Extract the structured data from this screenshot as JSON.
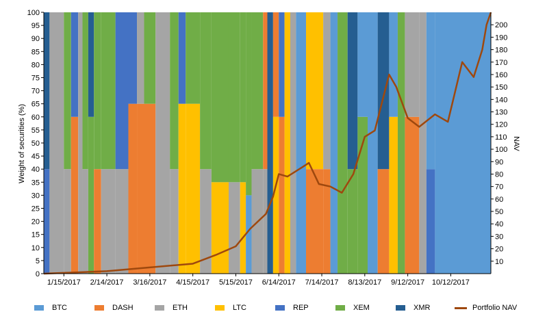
{
  "chart_data": {
    "type": "area",
    "title": "",
    "ylabel": "Weight of securities (%)",
    "y2label": "NAV",
    "ylim": [
      0,
      100
    ],
    "y2lim": [
      0,
      210
    ],
    "yticks": [
      0,
      5,
      10,
      15,
      20,
      25,
      30,
      35,
      40,
      45,
      50,
      55,
      60,
      65,
      70,
      75,
      80,
      85,
      90,
      95,
      100
    ],
    "y2ticks": [
      10,
      20,
      30,
      40,
      50,
      60,
      70,
      80,
      90,
      100,
      110,
      120,
      130,
      140,
      150,
      160,
      170,
      180,
      190,
      200
    ],
    "xlabels": [
      "1/15/2017",
      "2/14/2017",
      "3/16/2017",
      "4/15/2017",
      "5/15/2017",
      "6/14/2017",
      "7/14/2017",
      "8/13/2017",
      "9/12/2017",
      "10/12/2017"
    ],
    "x_date_range": [
      "2017-01-01",
      "2017-11-09"
    ],
    "series_colors": {
      "BTC": "#5b9bd5",
      "DASH": "#ed7d31",
      "ETH": "#a5a5a5",
      "LTC": "#ffc000",
      "REP": "#4472c4",
      "XEM": "#70ad47",
      "XMR": "#255e91",
      "Portfolio NAV": "#9e480e"
    },
    "legend": [
      "BTC",
      "DASH",
      "ETH",
      "LTC",
      "REP",
      "XEM",
      "XMR",
      "Portfolio NAV"
    ],
    "weights": [
      {
        "date": "2017-01-01",
        "holdings": [
          [
            "REP",
            40
          ],
          [
            "XMR",
            60
          ]
        ]
      },
      {
        "date": "2017-01-05",
        "holdings": [
          [
            "ETH",
            100
          ]
        ]
      },
      {
        "date": "2017-01-15",
        "holdings": [
          [
            "ETH",
            40
          ],
          [
            "XEM",
            60
          ]
        ]
      },
      {
        "date": "2017-01-20",
        "holdings": [
          [
            "DASH",
            60
          ],
          [
            "REP",
            40
          ]
        ]
      },
      {
        "date": "2017-01-25",
        "holdings": [
          [
            "ETH",
            100
          ]
        ]
      },
      {
        "date": "2017-01-28",
        "holdings": [
          [
            "ETH",
            40
          ],
          [
            "XEM",
            60
          ]
        ]
      },
      {
        "date": "2017-02-01",
        "holdings": [
          [
            "XEM",
            60
          ],
          [
            "XMR",
            40
          ]
        ]
      },
      {
        "date": "2017-02-05",
        "holdings": [
          [
            "DASH",
            40
          ],
          [
            "XEM",
            60
          ]
        ]
      },
      {
        "date": "2017-02-10",
        "holdings": [
          [
            "ETH",
            40
          ],
          [
            "XEM",
            60
          ]
        ]
      },
      {
        "date": "2017-02-20",
        "holdings": [
          [
            "ETH",
            40
          ],
          [
            "REP",
            60
          ]
        ]
      },
      {
        "date": "2017-03-01",
        "holdings": [
          [
            "DASH",
            65
          ],
          [
            "REP",
            35
          ]
        ]
      },
      {
        "date": "2017-03-07",
        "holdings": [
          [
            "DASH",
            65
          ],
          [
            "ETH",
            35
          ]
        ]
      },
      {
        "date": "2017-03-12",
        "holdings": [
          [
            "DASH",
            65
          ],
          [
            "XEM",
            35
          ]
        ]
      },
      {
        "date": "2017-03-20",
        "holdings": [
          [
            "ETH",
            100
          ]
        ]
      },
      {
        "date": "2017-03-30",
        "holdings": [
          [
            "ETH",
            40
          ],
          [
            "XEM",
            60
          ]
        ]
      },
      {
        "date": "2017-04-05",
        "holdings": [
          [
            "LTC",
            65
          ],
          [
            "REP",
            35
          ]
        ]
      },
      {
        "date": "2017-04-10",
        "holdings": [
          [
            "LTC",
            65
          ],
          [
            "XEM",
            35
          ]
        ]
      },
      {
        "date": "2017-04-20",
        "holdings": [
          [
            "ETH",
            40
          ],
          [
            "XEM",
            60
          ]
        ]
      },
      {
        "date": "2017-04-28",
        "holdings": [
          [
            "LTC",
            35
          ],
          [
            "XEM",
            65
          ]
        ]
      },
      {
        "date": "2017-05-10",
        "holdings": [
          [
            "ETH",
            35
          ],
          [
            "XEM",
            65
          ]
        ]
      },
      {
        "date": "2017-05-18",
        "holdings": [
          [
            "LTC",
            35
          ],
          [
            "XEM",
            65
          ]
        ]
      },
      {
        "date": "2017-05-22",
        "holdings": [
          [
            "BTC",
            30
          ],
          [
            "XEM",
            70
          ]
        ]
      },
      {
        "date": "2017-05-26",
        "holdings": [
          [
            "ETH",
            40
          ],
          [
            "XEM",
            60
          ]
        ]
      },
      {
        "date": "2017-06-03",
        "holdings": [
          [
            "ETH",
            40
          ],
          [
            "DASH",
            60
          ]
        ]
      },
      {
        "date": "2017-06-06",
        "holdings": [
          [
            "XMR",
            100
          ]
        ]
      },
      {
        "date": "2017-06-10",
        "holdings": [
          [
            "LTC",
            60
          ],
          [
            "DASH",
            40
          ]
        ]
      },
      {
        "date": "2017-06-14",
        "holdings": [
          [
            "DASH",
            60
          ],
          [
            "REP",
            40
          ]
        ]
      },
      {
        "date": "2017-06-18",
        "holdings": [
          [
            "LTC",
            100
          ]
        ]
      },
      {
        "date": "2017-06-22",
        "holdings": [
          [
            "ETH",
            100
          ]
        ]
      },
      {
        "date": "2017-06-26",
        "holdings": [
          [
            "BTC",
            100
          ]
        ]
      },
      {
        "date": "2017-07-03",
        "holdings": [
          [
            "DASH",
            40
          ],
          [
            "LTC",
            60
          ]
        ]
      },
      {
        "date": "2017-07-15",
        "holdings": [
          [
            "DASH",
            40
          ],
          [
            "ETH",
            60
          ]
        ]
      },
      {
        "date": "2017-07-20",
        "holdings": [
          [
            "BTC",
            100
          ]
        ]
      },
      {
        "date": "2017-07-25",
        "holdings": [
          [
            "XEM",
            100
          ]
        ]
      },
      {
        "date": "2017-08-01",
        "holdings": [
          [
            "XEM",
            40
          ],
          [
            "XMR",
            60
          ]
        ]
      },
      {
        "date": "2017-08-08",
        "holdings": [
          [
            "XEM",
            60
          ],
          [
            "BTC",
            40
          ]
        ]
      },
      {
        "date": "2017-08-15",
        "holdings": [
          [
            "BTC",
            100
          ]
        ]
      },
      {
        "date": "2017-08-22",
        "holdings": [
          [
            "DASH",
            40
          ],
          [
            "XMR",
            60
          ]
        ]
      },
      {
        "date": "2017-08-30",
        "holdings": [
          [
            "LTC",
            60
          ],
          [
            "BTC",
            40
          ]
        ]
      },
      {
        "date": "2017-09-05",
        "holdings": [
          [
            "XEM",
            100
          ]
        ]
      },
      {
        "date": "2017-09-10",
        "holdings": [
          [
            "DASH",
            60
          ],
          [
            "ETH",
            40
          ]
        ]
      },
      {
        "date": "2017-09-20",
        "holdings": [
          [
            "ETH",
            100
          ]
        ]
      },
      {
        "date": "2017-09-25",
        "holdings": [
          [
            "REP",
            40
          ],
          [
            "BTC",
            60
          ]
        ]
      },
      {
        "date": "2017-10-01",
        "holdings": [
          [
            "BTC",
            100
          ]
        ]
      }
    ],
    "nav": [
      {
        "date": "2017-01-01",
        "value": 0
      },
      {
        "date": "2017-02-14",
        "value": 2
      },
      {
        "date": "2017-03-16",
        "value": 5
      },
      {
        "date": "2017-04-15",
        "value": 8
      },
      {
        "date": "2017-05-01",
        "value": 15
      },
      {
        "date": "2017-05-15",
        "value": 22
      },
      {
        "date": "2017-05-25",
        "value": 36
      },
      {
        "date": "2017-06-05",
        "value": 48
      },
      {
        "date": "2017-06-10",
        "value": 62
      },
      {
        "date": "2017-06-14",
        "value": 80
      },
      {
        "date": "2017-06-20",
        "value": 78
      },
      {
        "date": "2017-07-01",
        "value": 86
      },
      {
        "date": "2017-07-05",
        "value": 89
      },
      {
        "date": "2017-07-12",
        "value": 72
      },
      {
        "date": "2017-07-20",
        "value": 70
      },
      {
        "date": "2017-07-28",
        "value": 65
      },
      {
        "date": "2017-08-05",
        "value": 80
      },
      {
        "date": "2017-08-13",
        "value": 110
      },
      {
        "date": "2017-08-20",
        "value": 115
      },
      {
        "date": "2017-08-30",
        "value": 160
      },
      {
        "date": "2017-09-04",
        "value": 150
      },
      {
        "date": "2017-09-12",
        "value": 125
      },
      {
        "date": "2017-09-20",
        "value": 118
      },
      {
        "date": "2017-10-01",
        "value": 128
      },
      {
        "date": "2017-10-10",
        "value": 122
      },
      {
        "date": "2017-10-20",
        "value": 170
      },
      {
        "date": "2017-10-28",
        "value": 158
      },
      {
        "date": "2017-11-03",
        "value": 180
      },
      {
        "date": "2017-11-06",
        "value": 200
      },
      {
        "date": "2017-11-09",
        "value": 210
      }
    ]
  }
}
